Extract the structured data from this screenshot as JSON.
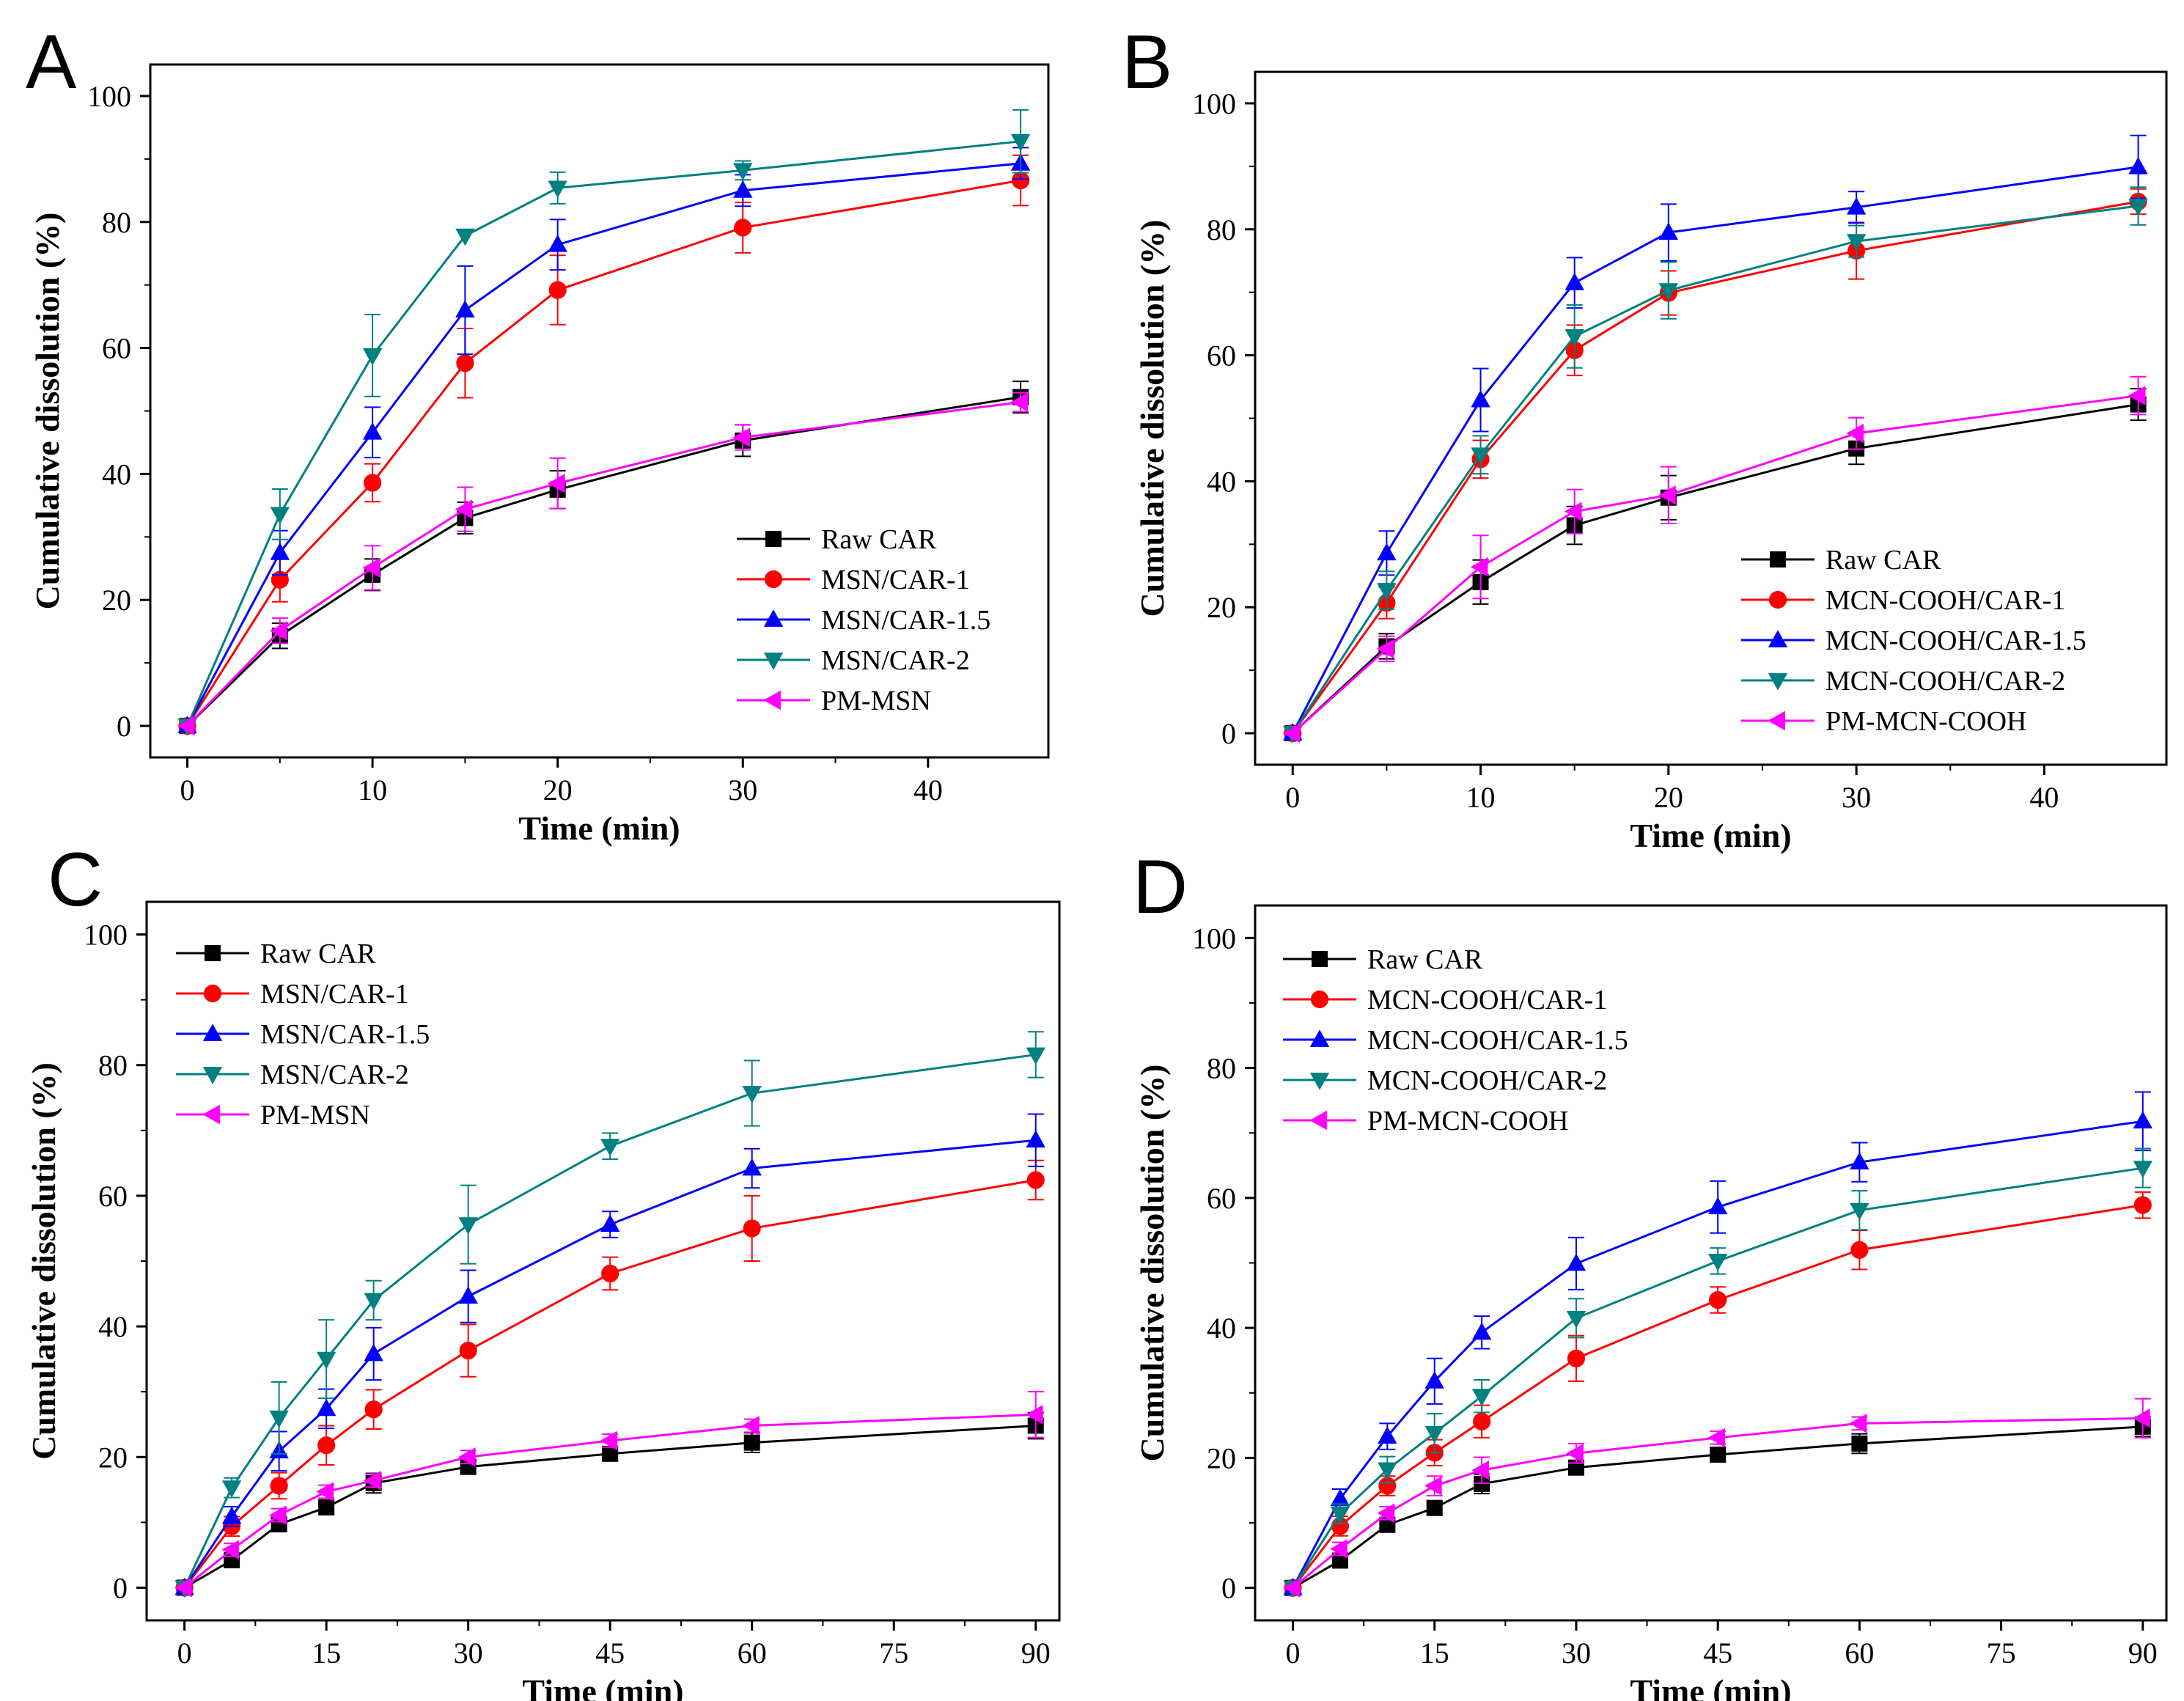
{
  "figure": {
    "description_panels": [
      "A",
      "B",
      "C",
      "D"
    ]
  },
  "chart_data": [
    {
      "panel": "A",
      "type": "line",
      "xlabel": "Time (min)",
      "ylabel": "Cumulative dissolution (%)",
      "xlim": [
        -2,
        46.5
      ],
      "ylim": [
        -5,
        105
      ],
      "xticks": [
        0,
        10,
        20,
        30,
        40
      ],
      "yticks": [
        0,
        20,
        40,
        60,
        80,
        100
      ],
      "x": [
        0,
        5,
        10,
        15,
        20,
        30,
        45
      ],
      "legend_position": "bottom-right",
      "series": [
        {
          "name": "Raw CAR",
          "color": "#000000",
          "marker": "square",
          "values": [
            0,
            14.3,
            24.0,
            33.0,
            37.5,
            45.3,
            52.2
          ],
          "errors": [
            0,
            2,
            2.5,
            2.5,
            3,
            2.5,
            2.5
          ]
        },
        {
          "name": "MSN/CAR-1",
          "color": "#ff0000",
          "marker": "circle",
          "values": [
            0,
            23.2,
            38.6,
            57.6,
            69.2,
            79.1,
            86.6
          ],
          "errors": [
            0,
            3.5,
            3,
            5.5,
            5.5,
            4,
            4
          ]
        },
        {
          "name": "MSN/CAR-1.5",
          "color": "#0000ff",
          "marker": "triangle-up",
          "values": [
            0,
            27.5,
            46.6,
            66.0,
            76.4,
            85.0,
            89.3
          ],
          "errors": [
            0,
            3.5,
            4,
            7,
            4,
            2.5,
            2.5
          ]
        },
        {
          "name": "MSN/CAR-2",
          "color": "#008080",
          "marker": "triangle-down",
          "values": [
            0,
            33.6,
            58.8,
            77.8,
            85.4,
            88.2,
            92.8
          ],
          "errors": [
            0,
            4,
            6.5,
            0,
            2.5,
            1.5,
            5
          ]
        },
        {
          "name": "PM-MSN",
          "color": "#ff00ff",
          "marker": "triangle-left",
          "values": [
            0,
            15.1,
            25.1,
            34.4,
            38.5,
            45.8,
            51.4
          ],
          "errors": [
            0,
            2,
            3.5,
            3.5,
            4,
            2,
            1.5
          ]
        }
      ]
    },
    {
      "panel": "B",
      "type": "line",
      "xlabel": "Time (min)",
      "ylabel": "Cumulative dissolution (%)",
      "xlim": [
        -2,
        46.5
      ],
      "ylim": [
        -5,
        105
      ],
      "xticks": [
        0,
        10,
        20,
        30,
        40
      ],
      "yticks": [
        0,
        20,
        40,
        60,
        80,
        100
      ],
      "x": [
        0,
        5,
        10,
        15,
        20,
        30,
        45
      ],
      "legend_position": "bottom-right",
      "series": [
        {
          "name": "Raw CAR",
          "color": "#000000",
          "marker": "square",
          "values": [
            0,
            13.8,
            24.0,
            33.0,
            37.4,
            45.2,
            52.2
          ],
          "errors": [
            0,
            2,
            3.5,
            3,
            3.5,
            2.5,
            2.5
          ]
        },
        {
          "name": "MCN-COOH/CAR-1",
          "color": "#ff0000",
          "marker": "circle",
          "values": [
            0,
            20.7,
            43.5,
            60.8,
            69.9,
            76.6,
            84.4
          ],
          "errors": [
            0,
            2.5,
            3,
            4,
            3.5,
            4.5,
            2
          ]
        },
        {
          "name": "MCN-COOH/CAR-1.5",
          "color": "#0000ff",
          "marker": "triangle-up",
          "values": [
            0,
            28.6,
            52.9,
            71.5,
            79.5,
            83.5,
            89.9
          ],
          "errors": [
            0,
            3.5,
            5,
            4,
            4.5,
            2.5,
            5
          ]
        },
        {
          "name": "MCN-COOH/CAR-2",
          "color": "#008080",
          "marker": "triangle-down",
          "values": [
            0,
            22.7,
            44.2,
            63.0,
            70.3,
            78.1,
            83.7
          ],
          "errors": [
            0,
            3,
            3,
            5,
            4.5,
            2.5,
            3
          ]
        },
        {
          "name": "PM-MCN-COOH",
          "color": "#ff00ff",
          "marker": "triangle-left",
          "values": [
            0,
            13.4,
            26.4,
            35.2,
            37.8,
            47.6,
            53.6
          ],
          "errors": [
            0,
            2,
            5,
            3.5,
            4.5,
            2.5,
            3
          ]
        }
      ]
    },
    {
      "panel": "C",
      "type": "line",
      "xlabel": "Time (min)",
      "ylabel": "Cumulative dissolution (%)",
      "xlim": [
        -4,
        92.5
      ],
      "ylim": [
        -5,
        105
      ],
      "xticks": [
        0,
        15,
        30,
        45,
        60,
        75,
        90
      ],
      "yticks": [
        0,
        20,
        40,
        60,
        80,
        100
      ],
      "x": [
        0,
        5,
        10,
        15,
        20,
        30,
        45,
        60,
        90
      ],
      "legend_position": "top-left",
      "series": [
        {
          "name": "Raw CAR",
          "color": "#000000",
          "marker": "square",
          "values": [
            0,
            4.2,
            9.7,
            12.3,
            16.0,
            18.5,
            20.5,
            22.2,
            24.8
          ],
          "errors": [
            0,
            1,
            1,
            1,
            1.5,
            1,
            1,
            1.5,
            2
          ]
        },
        {
          "name": "MSN/CAR-1",
          "color": "#ff0000",
          "marker": "circle",
          "values": [
            0,
            9.4,
            15.6,
            21.8,
            27.3,
            36.3,
            48.1,
            55.0,
            62.4
          ],
          "errors": [
            0,
            1.5,
            2,
            3,
            3,
            4,
            2.5,
            5,
            3
          ]
        },
        {
          "name": "MSN/CAR-1.5",
          "color": "#0000ff",
          "marker": "triangle-up",
          "values": [
            0,
            10.9,
            20.9,
            27.4,
            35.8,
            44.6,
            55.6,
            64.2,
            68.5
          ],
          "errors": [
            0,
            1.5,
            3,
            3,
            4,
            4,
            2,
            3,
            4
          ]
        },
        {
          "name": "MSN/CAR-2",
          "color": "#008080",
          "marker": "triangle-down",
          "values": [
            0,
            15.3,
            26.0,
            35.0,
            44.0,
            55.6,
            67.6,
            75.7,
            81.6
          ],
          "errors": [
            0,
            1.5,
            5.5,
            6,
            3,
            6,
            2,
            5,
            3.5
          ]
        },
        {
          "name": "PM-MSN",
          "color": "#ff00ff",
          "marker": "triangle-left",
          "values": [
            0,
            5.8,
            11.1,
            14.7,
            16.4,
            20.0,
            22.5,
            24.8,
            26.5
          ],
          "errors": [
            0,
            1,
            1,
            1,
            1,
            1,
            1,
            1,
            3.5
          ]
        }
      ]
    },
    {
      "panel": "D",
      "type": "line",
      "xlabel": "Time (min)",
      "ylabel": "Cumulative dissolution (%)",
      "xlim": [
        -4,
        92.5
      ],
      "ylim": [
        -5,
        105
      ],
      "xticks": [
        0,
        15,
        30,
        45,
        60,
        75,
        90
      ],
      "yticks": [
        0,
        20,
        40,
        60,
        80,
        100
      ],
      "x": [
        0,
        5,
        10,
        15,
        20,
        30,
        45,
        60,
        90
      ],
      "legend_position": "top-left",
      "series": [
        {
          "name": "Raw CAR",
          "color": "#000000",
          "marker": "square",
          "values": [
            0,
            4.2,
            9.7,
            12.3,
            16.0,
            18.5,
            20.5,
            22.2,
            24.8
          ],
          "errors": [
            0,
            1,
            1,
            1,
            1.5,
            1,
            1,
            1.5,
            1.5
          ]
        },
        {
          "name": "MCN-COOH/CAR-1",
          "color": "#ff0000",
          "marker": "circle",
          "values": [
            0,
            9.5,
            15.7,
            20.8,
            25.6,
            35.3,
            44.3,
            52.0,
            58.9
          ],
          "errors": [
            0,
            1.5,
            1.5,
            2,
            2.5,
            3.5,
            2,
            3,
            2
          ]
        },
        {
          "name": "MCN-COOH/CAR-1.5",
          "color": "#0000ff",
          "marker": "triangle-up",
          "values": [
            0,
            13.7,
            23.3,
            31.8,
            39.3,
            49.9,
            58.6,
            65.5,
            71.8
          ],
          "errors": [
            0,
            1.5,
            2,
            3.5,
            2.5,
            4,
            4,
            3,
            4.5
          ]
        },
        {
          "name": "MCN-COOH/CAR-2",
          "color": "#008080",
          "marker": "triangle-down",
          "values": [
            0,
            11.4,
            18.2,
            23.8,
            29.5,
            41.5,
            50.3,
            58.1,
            64.6
          ],
          "errors": [
            0,
            1.5,
            2,
            3,
            2.5,
            3,
            2,
            3,
            3
          ]
        },
        {
          "name": "PM-MCN-COOH",
          "color": "#ff00ff",
          "marker": "triangle-left",
          "values": [
            0,
            6.0,
            11.5,
            15.7,
            18.1,
            20.7,
            23.1,
            25.3,
            26.1
          ],
          "errors": [
            0,
            1,
            1,
            1.5,
            2,
            1.5,
            1,
            1,
            3
          ]
        }
      ]
    }
  ]
}
